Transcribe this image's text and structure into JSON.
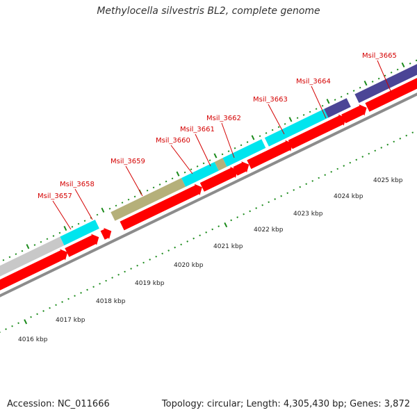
{
  "title": "Methylocella silvestris BL2, complete genome",
  "footer": {
    "accession": "Accession: NC_011666",
    "summary": "Topology: circular; Length: 4,305,430 bp; Genes: 3,872"
  },
  "colors": {
    "cds": "#ff0000",
    "gc_cyan": "#00e5ee",
    "gc_olive": "#b5b07a",
    "gc_navy": "#4b4596",
    "gc_grey": "#c8c8c8",
    "backbone": "#8c8c8c",
    "ticks": "#1a8a1a",
    "label": "#d40000"
  },
  "scale_labels": [
    "4016 kbp",
    "4017 kbp",
    "4018 kbp",
    "4019 kbp",
    "4020 kbp",
    "4021 kbp",
    "4022 kbp",
    "4023 kbp",
    "4024 kbp",
    "4025 kbp"
  ],
  "genes": [
    "Msil_3657",
    "Msil_3658",
    "Msil_3659",
    "Msil_3660",
    "Msil_3661",
    "Msil_3662",
    "Msil_3663",
    "Msil_3664",
    "Msil_3665"
  ]
}
